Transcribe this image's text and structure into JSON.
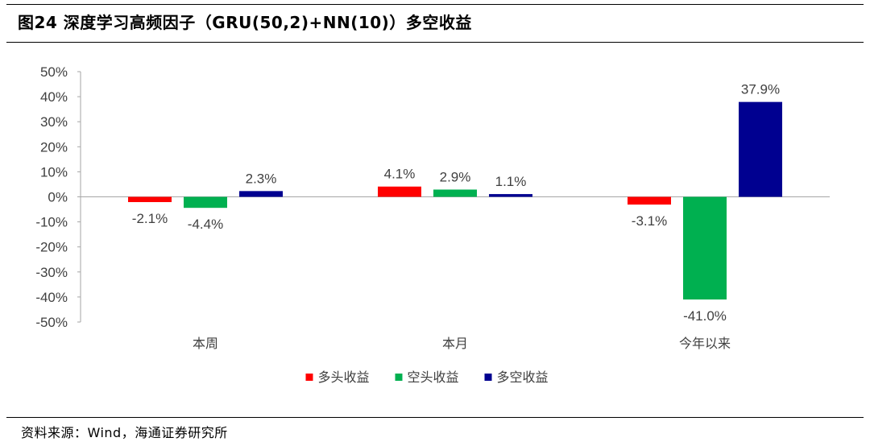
{
  "title": "图24 深度学习高频因子（GRU(50,2)+NN(10)）多空收益",
  "source": "资料来源：Wind，海通证券研究所",
  "chart_data": {
    "type": "bar",
    "categories": [
      "本周",
      "本月",
      "今年以来"
    ],
    "series": [
      {
        "name": "多头收益",
        "color": "#ff0000",
        "values": [
          -2.1,
          4.1,
          -3.1
        ],
        "labels": [
          "-2.1%",
          "4.1%",
          "-3.1%"
        ]
      },
      {
        "name": "空头收益",
        "color": "#00b050",
        "values": [
          -4.4,
          2.9,
          -41.0
        ],
        "labels": [
          "-4.4%",
          "2.9%",
          "-41.0%"
        ]
      },
      {
        "name": "多空收益",
        "color": "#000090",
        "values": [
          2.3,
          1.1,
          37.9
        ],
        "labels": [
          "2.3%",
          "1.1%",
          "37.9%"
        ]
      }
    ],
    "ylim": [
      -50,
      50
    ],
    "yticks": [
      50,
      40,
      30,
      20,
      10,
      0,
      -10,
      -20,
      -30,
      -40,
      -50
    ],
    "ytick_labels": [
      "50%",
      "40%",
      "30%",
      "20%",
      "10%",
      "0%",
      "-10%",
      "-20%",
      "-30%",
      "-40%",
      "-50%"
    ],
    "xlabel": "",
    "ylabel": "",
    "legend_position": "bottom-center",
    "grid": false
  }
}
